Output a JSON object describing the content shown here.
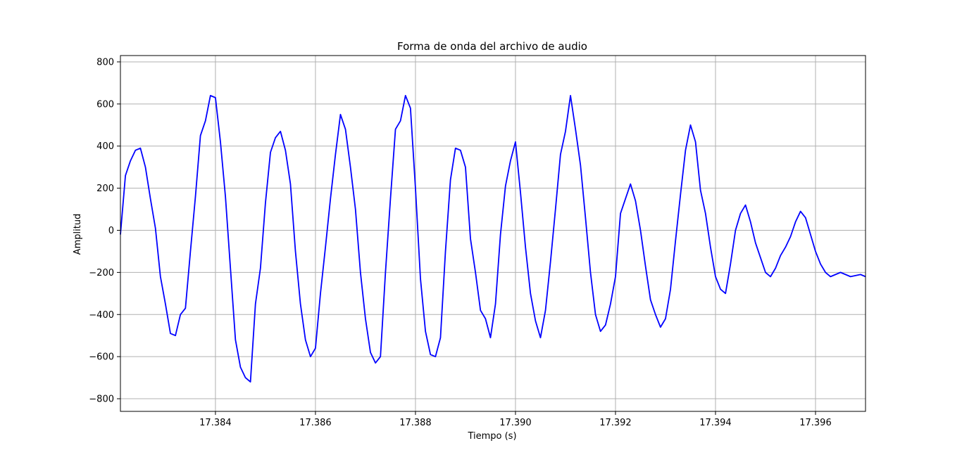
{
  "chart_data": {
    "type": "line",
    "title": "Forma de onda del archivo de audio",
    "xlabel": "Tiempo (s)",
    "ylabel": "Amplitud",
    "xlim": [
      17.3821,
      17.397
    ],
    "ylim": [
      -860,
      830
    ],
    "x_ticks": [
      17.384,
      17.386,
      17.388,
      17.39,
      17.392,
      17.394,
      17.396
    ],
    "x_tick_labels": [
      "17.384",
      "17.386",
      "17.388",
      "17.390",
      "17.392",
      "17.394",
      "17.396"
    ],
    "y_ticks": [
      800,
      600,
      400,
      200,
      0,
      -200,
      -400,
      -600,
      -800
    ],
    "y_tick_labels": [
      "800",
      "600",
      "400",
      "200",
      "0",
      "−200",
      "−400",
      "−600",
      "−800"
    ],
    "grid": true,
    "color": "#0000ff",
    "series": [
      {
        "x": [
          17.3821,
          17.3822,
          17.3823,
          17.3824,
          17.3825,
          17.3826,
          17.3827,
          17.3828,
          17.3829,
          17.383,
          17.3831,
          17.3832,
          17.3833,
          17.3834,
          17.3835,
          17.3836,
          17.3837,
          17.3838,
          17.3839,
          17.384,
          17.3841,
          17.3842,
          17.3843,
          17.3844,
          17.3845,
          17.3846,
          17.3847,
          17.3848,
          17.3849,
          17.385,
          17.3851,
          17.3852,
          17.3853,
          17.3854,
          17.3855,
          17.3856,
          17.3857,
          17.3858,
          17.3859,
          17.386,
          17.3861,
          17.3862,
          17.3863,
          17.3864,
          17.3865,
          17.3866,
          17.3867,
          17.3868,
          17.3869,
          17.387,
          17.3871,
          17.3872,
          17.3873,
          17.3874,
          17.3875,
          17.3876,
          17.3877,
          17.3878,
          17.3879,
          17.388,
          17.3881,
          17.3882,
          17.3883,
          17.3884,
          17.3885,
          17.3886,
          17.3887,
          17.3888,
          17.3889,
          17.389,
          17.3891,
          17.3892,
          17.3893,
          17.3894,
          17.3895,
          17.3896,
          17.3897,
          17.3898,
          17.3899,
          17.39,
          17.3901,
          17.3902,
          17.3903,
          17.3904,
          17.3905,
          17.3906,
          17.3907,
          17.3908,
          17.3909,
          17.391,
          17.3911,
          17.3912,
          17.3913,
          17.3914,
          17.3915,
          17.3916,
          17.3917,
          17.3918,
          17.3919,
          17.392,
          17.3921,
          17.3922,
          17.3923,
          17.3924,
          17.3925,
          17.3926,
          17.3927,
          17.3928,
          17.3929,
          17.393,
          17.3931,
          17.3932,
          17.3933,
          17.3934,
          17.3935,
          17.3936,
          17.3937,
          17.3938,
          17.3939,
          17.394,
          17.3941,
          17.3942,
          17.3943,
          17.3944,
          17.3945,
          17.3946,
          17.3947,
          17.3948,
          17.3949,
          17.395,
          17.3951,
          17.3952,
          17.3953,
          17.3954,
          17.3955,
          17.3956,
          17.3957,
          17.3958,
          17.3959,
          17.396,
          17.3961,
          17.3962,
          17.3963,
          17.3964,
          17.3965,
          17.3966,
          17.3967,
          17.3968,
          17.3969,
          17.397
        ],
        "y": [
          -20,
          260,
          330,
          380,
          390,
          300,
          150,
          10,
          -220,
          -350,
          -490,
          -500,
          -400,
          -370,
          -100,
          160,
          450,
          520,
          640,
          630,
          420,
          160,
          -180,
          -520,
          -650,
          -700,
          -720,
          -350,
          -180,
          130,
          370,
          440,
          470,
          380,
          220,
          -100,
          -350,
          -520,
          -600,
          -560,
          -300,
          -80,
          150,
          360,
          550,
          480,
          300,
          100,
          -200,
          -420,
          -580,
          -630,
          -600,
          -200,
          150,
          480,
          520,
          640,
          580,
          200,
          -230,
          -480,
          -590,
          -600,
          -510,
          -100,
          240,
          390,
          380,
          300,
          -40,
          -200,
          -380,
          -420,
          -510,
          -350,
          -20,
          210,
          330,
          420,
          180,
          -80,
          -300,
          -430,
          -510,
          -380,
          -150,
          100,
          360,
          470,
          640,
          480,
          310,
          60,
          -200,
          -400,
          -480,
          -450,
          -350,
          -220,
          80,
          150,
          220,
          140,
          0,
          -170,
          -330,
          -400,
          -460,
          -420,
          -280,
          -50,
          170,
          380,
          500,
          420,
          190,
          80,
          -80,
          -220,
          -280,
          -300,
          -160,
          0,
          80,
          120,
          40,
          -60,
          -130,
          -200,
          -220,
          -180,
          -120,
          -80,
          -30,
          40,
          90,
          60,
          -20,
          -100,
          -160,
          -200,
          -220,
          -210,
          -200,
          -210,
          -220,
          -215,
          -210,
          -220
        ]
      }
    ]
  }
}
